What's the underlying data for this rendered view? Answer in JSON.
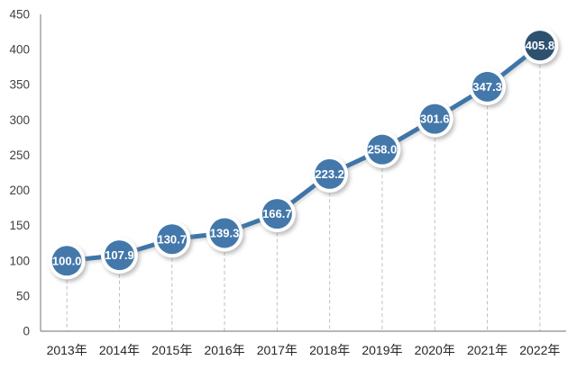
{
  "chart_data": {
    "type": "line",
    "title": "",
    "xlabel": "",
    "ylabel": "",
    "categories": [
      "2013年",
      "2014年",
      "2015年",
      "2016年",
      "2017年",
      "2018年",
      "2019年",
      "2020年",
      "2021年",
      "2022年"
    ],
    "values": [
      100.0,
      107.9,
      130.7,
      139.3,
      166.7,
      223.2,
      258.0,
      301.6,
      347.3,
      405.8
    ],
    "value_labels": [
      "100.0",
      "107.9",
      "130.7",
      "139.3",
      "166.7",
      "223.2",
      "258.0",
      "301.6",
      "347.3",
      "405.8"
    ],
    "ylim": [
      0,
      450
    ],
    "yticks": [
      0,
      50,
      100,
      150,
      200,
      250,
      300,
      350,
      400,
      450
    ],
    "legend": "none",
    "grid": "vertical dashed droplines from each marker to x-axis; no horizontal gridlines",
    "marker_style": "large circle with white ring and drop shadow, value label inside",
    "colors": {
      "marker_fill": "#4478AB",
      "marker_fill_last": "#2F5170",
      "marker_ring": "#FFFFFF",
      "line": "#3E74A8",
      "value_label_text": "#FFFFFF",
      "axis_line": "#8C8C8C",
      "dropline": "#BFBFBF",
      "y_tick_text": "#3F3F3F",
      "x_tick_text": "#262626",
      "background": "#FFFFFF"
    }
  }
}
